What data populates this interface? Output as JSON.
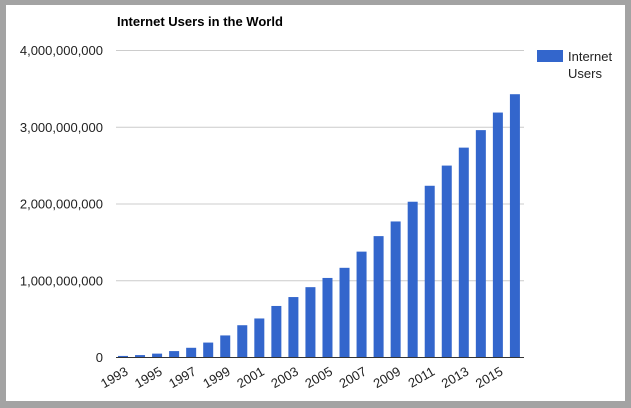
{
  "chart_data": {
    "type": "bar",
    "title": "Internet Users in the World",
    "xlabel": "",
    "ylabel": "",
    "ylim": [
      0,
      4000000000
    ],
    "yticks": [
      "0",
      "1,000,000,000",
      "2,000,000,000",
      "3,000,000,000",
      "4,000,000,000"
    ],
    "ytick_values": [
      0,
      1000000000,
      2000000000,
      3000000000,
      4000000000
    ],
    "grid": true,
    "legend_position": "right",
    "color": "#3366cc",
    "categories": [
      "1993",
      "1994",
      "1995",
      "1996",
      "1997",
      "1998",
      "1999",
      "2000",
      "2001",
      "2002",
      "2003",
      "2004",
      "2005",
      "2006",
      "2007",
      "2008",
      "2009",
      "2010",
      "2011",
      "2012",
      "2013",
      "2014",
      "2015",
      "2016"
    ],
    "xtick_labels": [
      "1993",
      "1995",
      "1997",
      "1999",
      "2001",
      "2003",
      "2005",
      "2007",
      "2009",
      "2011",
      "2013",
      "2015"
    ],
    "series": [
      {
        "name": "Internet Users",
        "values": [
          14000000,
          25000000,
          44000000,
          77000000,
          120000000,
          188000000,
          281000000,
          414000000,
          502000000,
          665000000,
          781000000,
          910000000,
          1030000000,
          1162000000,
          1373000000,
          1575000000,
          1766000000,
          2023000000,
          2231000000,
          2494000000,
          2728000000,
          2956000000,
          3185000000,
          3424000000
        ]
      }
    ],
    "legend": {
      "line1": "Internet",
      "line2": "Users"
    }
  }
}
